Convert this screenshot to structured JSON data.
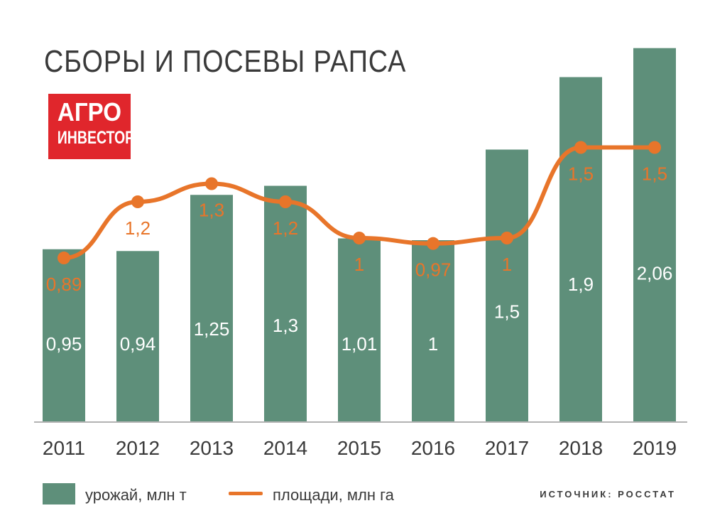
{
  "header": {
    "title": "СБОРЫ И ПОСЕВЫ РАПСА"
  },
  "logo": {
    "line1": "АГРО",
    "line2": "ИНВЕСТОР"
  },
  "source": "ИСТОЧНИК: РОССТАТ",
  "colors": {
    "bar": "#5e8f7a",
    "line": "#e8752a",
    "bar_label": "#ffffff",
    "line_label": "#e8752a",
    "logo_bg": "#e0262c"
  },
  "chart_data": {
    "type": "bar",
    "categories": [
      "2011",
      "2012",
      "2013",
      "2014",
      "2015",
      "2016",
      "2017",
      "2018",
      "2019"
    ],
    "series": [
      {
        "name": "урожай, млн т",
        "type": "bar",
        "values": [
          0.95,
          0.94,
          1.25,
          1.3,
          1.01,
          1,
          1.5,
          1.9,
          2.06
        ],
        "labels": [
          "0,95",
          "0,94",
          "1,25",
          "1,3",
          "1,01",
          "1",
          "1,5",
          "1,9",
          "2,06"
        ]
      },
      {
        "name": "площади, млн га",
        "type": "line",
        "values": [
          0.89,
          1.2,
          1.3,
          1.2,
          1,
          0.97,
          1,
          1.5,
          1.5
        ],
        "labels": [
          "0,89",
          "1,2",
          "1,3",
          "1,2",
          "1",
          "0,97",
          "1",
          "1,5",
          "1,5"
        ]
      }
    ],
    "legend": "bottom-left",
    "grid": false
  }
}
